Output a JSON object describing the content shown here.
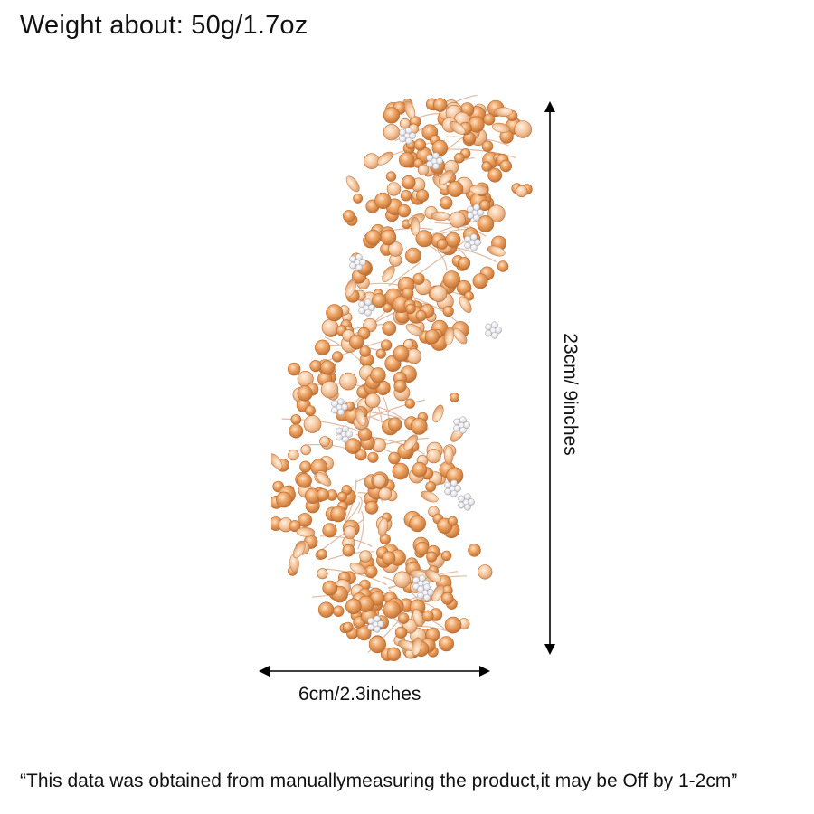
{
  "header": {
    "weight_text": "Weight about: 50g/1.7oz"
  },
  "dimensions": {
    "height_text": "23cm/ 9inches",
    "width_text": "6cm/2.3inches"
  },
  "footer": {
    "disclaimer_text": "“This data was obtained from manuallymeasuring the product,it may be Off by 1-2cm”"
  },
  "colors": {
    "crystal_peach": "#e9a064",
    "crystal_light": "#f6c9a0",
    "crystal_dark": "#c97a3e",
    "rhinestone": "#dcdce0",
    "wire": "#d8a88c"
  }
}
